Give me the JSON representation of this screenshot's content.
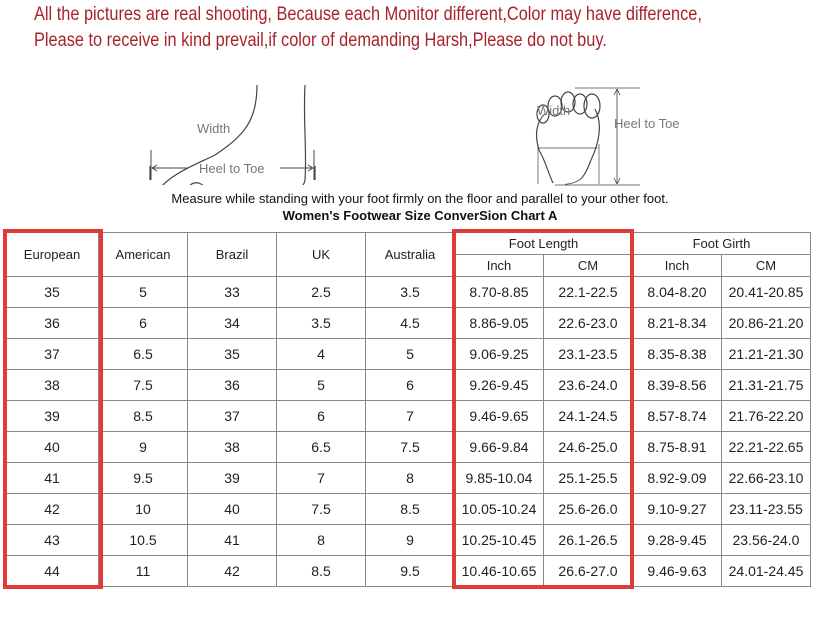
{
  "notice": {
    "line1": "All the pictures are real shooting, Because each Monitor different,Color may have difference,",
    "line2": "Please to receive in kind prevail,if color of demanding Harsh,Please do not buy."
  },
  "diagram": {
    "side_width_label": "Width",
    "side_heel_to_toe_label": "Heel to Toe",
    "sole_width_label": "Width",
    "sole_heel_to_toe_label": "Heel to Toe",
    "caption": "Measure while standing with your foot firmly on the floor and parallel to your other foot."
  },
  "chart_title": "Women's Footwear Size ConverSion Chart A",
  "highlight_color": "#e03a3a",
  "table": {
    "headers": [
      "European",
      "American",
      "Brazil",
      "UK",
      "Australia"
    ],
    "group_headers": [
      "Foot Length",
      "Foot Girth"
    ],
    "sub_headers": [
      "Inch",
      "CM",
      "Inch",
      "CM"
    ],
    "rows": [
      [
        "35",
        "5",
        "33",
        "2.5",
        "3.5",
        "8.70-8.85",
        "22.1-22.5",
        "8.04-8.20",
        "20.41-20.85"
      ],
      [
        "36",
        "6",
        "34",
        "3.5",
        "4.5",
        "8.86-9.05",
        "22.6-23.0",
        "8.21-8.34",
        "20.86-21.20"
      ],
      [
        "37",
        "6.5",
        "35",
        "4",
        "5",
        "9.06-9.25",
        "23.1-23.5",
        "8.35-8.38",
        "21.21-21.30"
      ],
      [
        "38",
        "7.5",
        "36",
        "5",
        "6",
        "9.26-9.45",
        "23.6-24.0",
        "8.39-8.56",
        "21.31-21.75"
      ],
      [
        "39",
        "8.5",
        "37",
        "6",
        "7",
        "9.46-9.65",
        "24.1-24.5",
        "8.57-8.74",
        "21.76-22.20"
      ],
      [
        "40",
        "9",
        "38",
        "6.5",
        "7.5",
        "9.66-9.84",
        "24.6-25.0",
        "8.75-8.91",
        "22.21-22.65"
      ],
      [
        "41",
        "9.5",
        "39",
        "7",
        "8",
        "9.85-10.04",
        "25.1-25.5",
        "8.92-9.09",
        "22.66-23.10"
      ],
      [
        "42",
        "10",
        "40",
        "7.5",
        "8.5",
        "10.05-10.24",
        "25.6-26.0",
        "9.10-9.27",
        "23.11-23.55"
      ],
      [
        "43",
        "10.5",
        "41",
        "8",
        "9",
        "10.25-10.45",
        "26.1-26.5",
        "9.28-9.45",
        "23.56-24.0"
      ],
      [
        "44",
        "11",
        "42",
        "8.5",
        "9.5",
        "10.46-10.65",
        "26.6-27.0",
        "9.46-9.63",
        "24.01-24.45"
      ]
    ]
  }
}
